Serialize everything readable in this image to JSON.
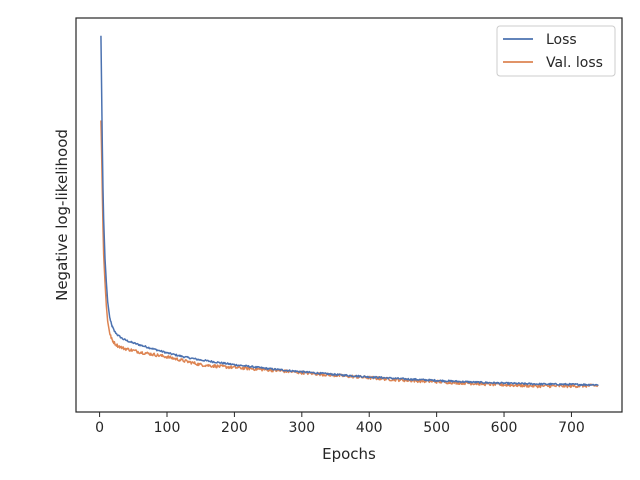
{
  "chart_data": {
    "type": "line",
    "xlabel": "Epochs",
    "ylabel": "Negative log-likelihood",
    "xlim": [
      -35,
      775
    ],
    "ylim": [
      0.0,
      1.0
    ],
    "x_ticks": [
      0,
      100,
      200,
      300,
      400,
      500,
      600,
      700
    ],
    "y_ticks_labeled": false,
    "grid": false,
    "legend_position": "top-right",
    "series": [
      {
        "name": "Loss",
        "color": "#4c72b0",
        "points": [
          [
            2,
            0.955
          ],
          [
            3,
            0.82
          ],
          [
            4,
            0.68
          ],
          [
            5,
            0.57
          ],
          [
            6,
            0.49
          ],
          [
            8,
            0.39
          ],
          [
            10,
            0.33
          ],
          [
            12,
            0.28
          ],
          [
            15,
            0.24
          ],
          [
            18,
            0.22
          ],
          [
            22,
            0.205
          ],
          [
            27,
            0.195
          ],
          [
            35,
            0.185
          ],
          [
            45,
            0.178
          ],
          [
            60,
            0.17
          ],
          [
            80,
            0.16
          ],
          [
            100,
            0.15
          ],
          [
            125,
            0.14
          ],
          [
            150,
            0.132
          ],
          [
            175,
            0.126
          ],
          [
            200,
            0.12
          ],
          [
            250,
            0.11
          ],
          [
            300,
            0.102
          ],
          [
            350,
            0.095
          ],
          [
            400,
            0.089
          ],
          [
            450,
            0.084
          ],
          [
            500,
            0.08
          ],
          [
            550,
            0.076
          ],
          [
            600,
            0.073
          ],
          [
            650,
            0.071
          ],
          [
            700,
            0.07
          ],
          [
            740,
            0.069
          ]
        ]
      },
      {
        "name": "Val. loss",
        "color": "#dd8452",
        "points": [
          [
            2,
            0.74
          ],
          [
            3,
            0.66
          ],
          [
            4,
            0.56
          ],
          [
            5,
            0.47
          ],
          [
            6,
            0.4
          ],
          [
            8,
            0.33
          ],
          [
            10,
            0.27
          ],
          [
            12,
            0.23
          ],
          [
            15,
            0.2
          ],
          [
            18,
            0.185
          ],
          [
            22,
            0.175
          ],
          [
            27,
            0.168
          ],
          [
            35,
            0.162
          ],
          [
            45,
            0.158
          ],
          [
            60,
            0.152
          ],
          [
            80,
            0.146
          ],
          [
            100,
            0.14
          ],
          [
            125,
            0.13
          ],
          [
            150,
            0.12
          ],
          [
            175,
            0.116
          ],
          [
            200,
            0.113
          ],
          [
            250,
            0.107
          ],
          [
            300,
            0.1
          ],
          [
            350,
            0.093
          ],
          [
            400,
            0.087
          ],
          [
            450,
            0.081
          ],
          [
            500,
            0.077
          ],
          [
            550,
            0.073
          ],
          [
            600,
            0.069
          ],
          [
            650,
            0.066
          ],
          [
            700,
            0.066
          ],
          [
            740,
            0.067
          ]
        ]
      }
    ]
  }
}
